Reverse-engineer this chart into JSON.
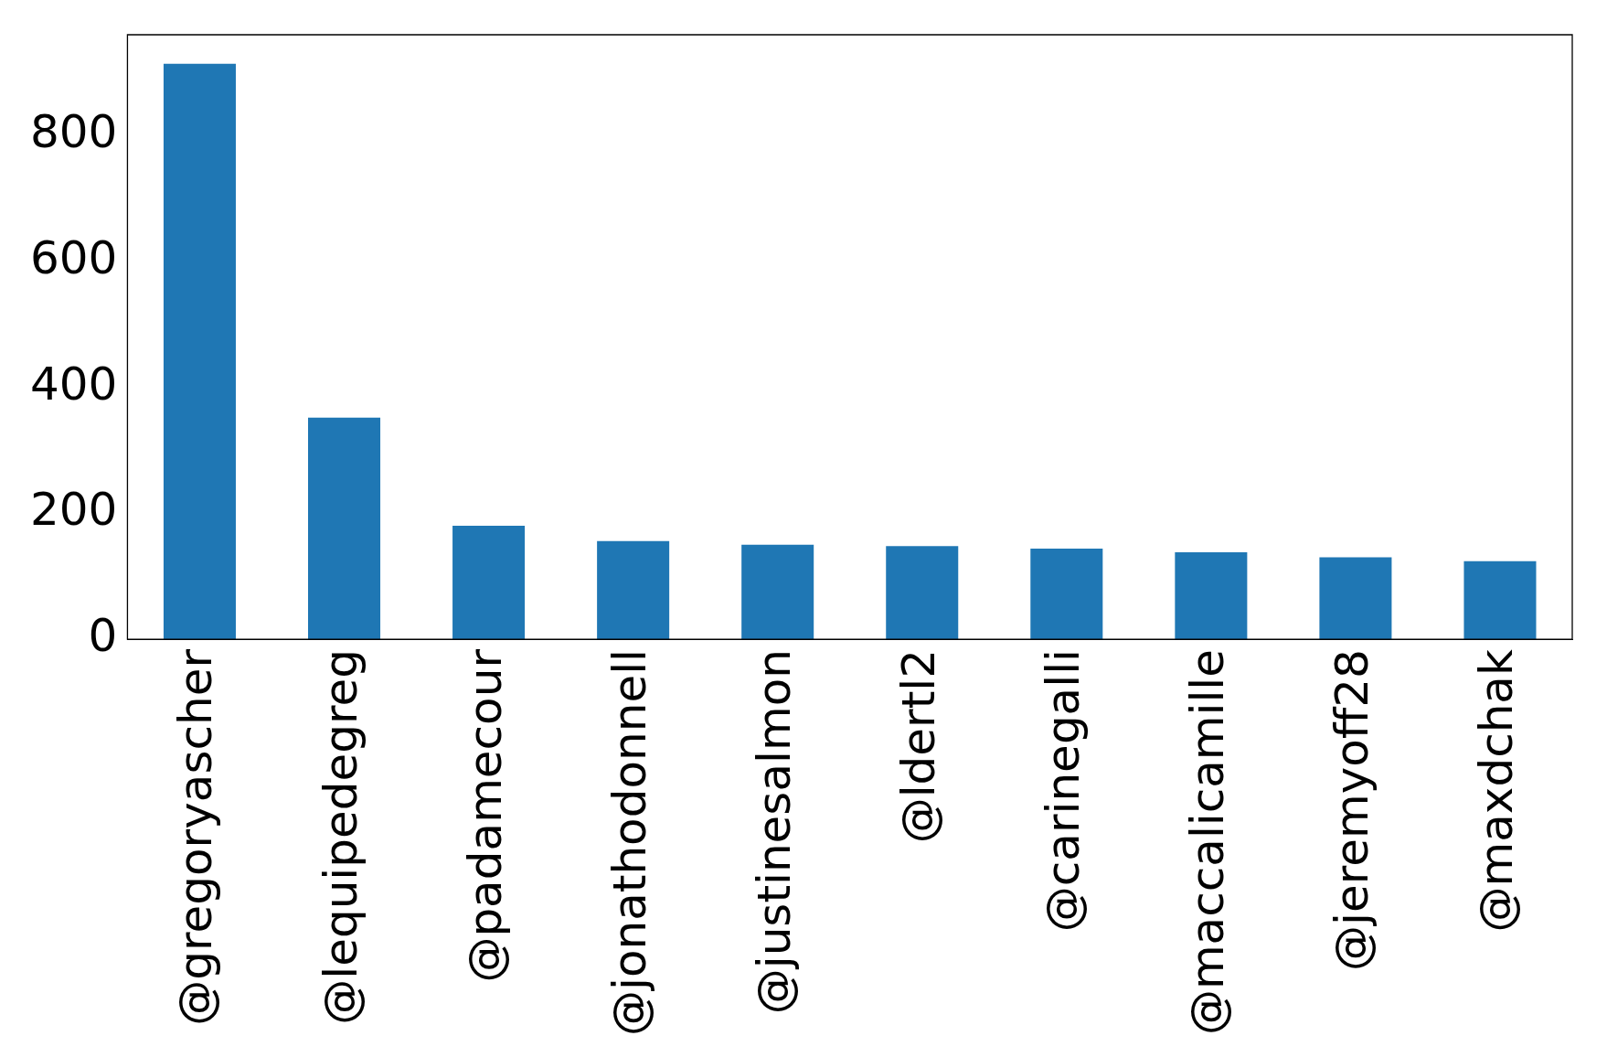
{
  "chart_data": {
    "type": "bar",
    "categories": [
      "@gregoryascher",
      "@lequipedegreg",
      "@padamecour",
      "@jonathodonnell",
      "@justinesalmon",
      "@ldertl2",
      "@carinegalli",
      "@maccalicamille",
      "@jeremyoff28",
      "@maxdchak"
    ],
    "values": [
      914,
      352,
      180,
      156,
      150,
      148,
      144,
      138,
      130,
      124
    ],
    "color": "#1f77b4",
    "ylim": [
      0,
      960
    ],
    "yticks": [
      0,
      200,
      400,
      600,
      800
    ],
    "grid": false,
    "legend": false
  }
}
